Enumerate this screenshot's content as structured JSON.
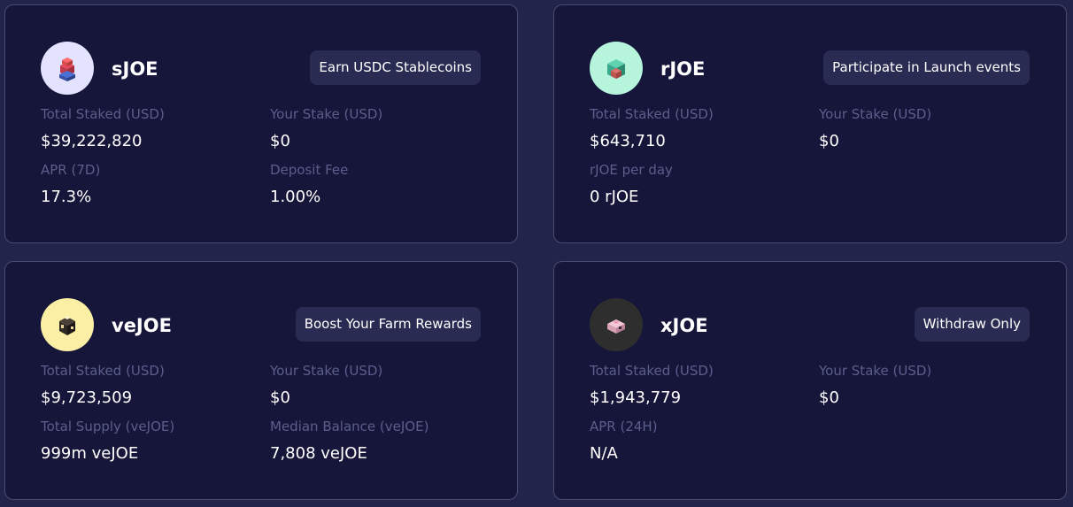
{
  "cards": [
    {
      "name": "sJOE",
      "badge": "Earn USDC Stablecoins",
      "icon": "sjoe-token-icon",
      "icon_bg": "#e3e2ff",
      "stats": [
        {
          "label": "Total Staked (USD)",
          "value": "$39,222,820"
        },
        {
          "label": "Your Stake (USD)",
          "value": "$0"
        },
        {
          "label": "APR (7D)",
          "value": "17.3%"
        },
        {
          "label": "Deposit Fee",
          "value": "1.00%"
        }
      ]
    },
    {
      "name": "rJOE",
      "badge": "Participate in Launch events",
      "icon": "rjoe-token-icon",
      "icon_bg": "#b6f5dc",
      "stats": [
        {
          "label": "Total Staked (USD)",
          "value": "$643,710"
        },
        {
          "label": "Your Stake (USD)",
          "value": "$0"
        },
        {
          "label": "rJOE per day",
          "value": "0 rJOE"
        }
      ]
    },
    {
      "name": "veJOE",
      "badge": "Boost Your Farm Rewards",
      "icon": "vejoe-token-icon",
      "icon_bg": "#fbeea5",
      "stats": [
        {
          "label": "Total Staked (USD)",
          "value": "$9,723,509"
        },
        {
          "label": "Your Stake (USD)",
          "value": "$0"
        },
        {
          "label": "Total Supply (veJOE)",
          "value": "999m veJOE"
        },
        {
          "label": "Median Balance (veJOE)",
          "value": "7,808 veJOE"
        }
      ]
    },
    {
      "name": "xJOE",
      "badge": "Withdraw Only",
      "icon": "xjoe-token-icon",
      "icon_bg": "#2e2e2e",
      "stats": [
        {
          "label": "Total Staked (USD)",
          "value": "$1,943,779"
        },
        {
          "label": "Your Stake (USD)",
          "value": "$0"
        },
        {
          "label": "APR (24H)",
          "value": "N/A"
        }
      ]
    }
  ]
}
